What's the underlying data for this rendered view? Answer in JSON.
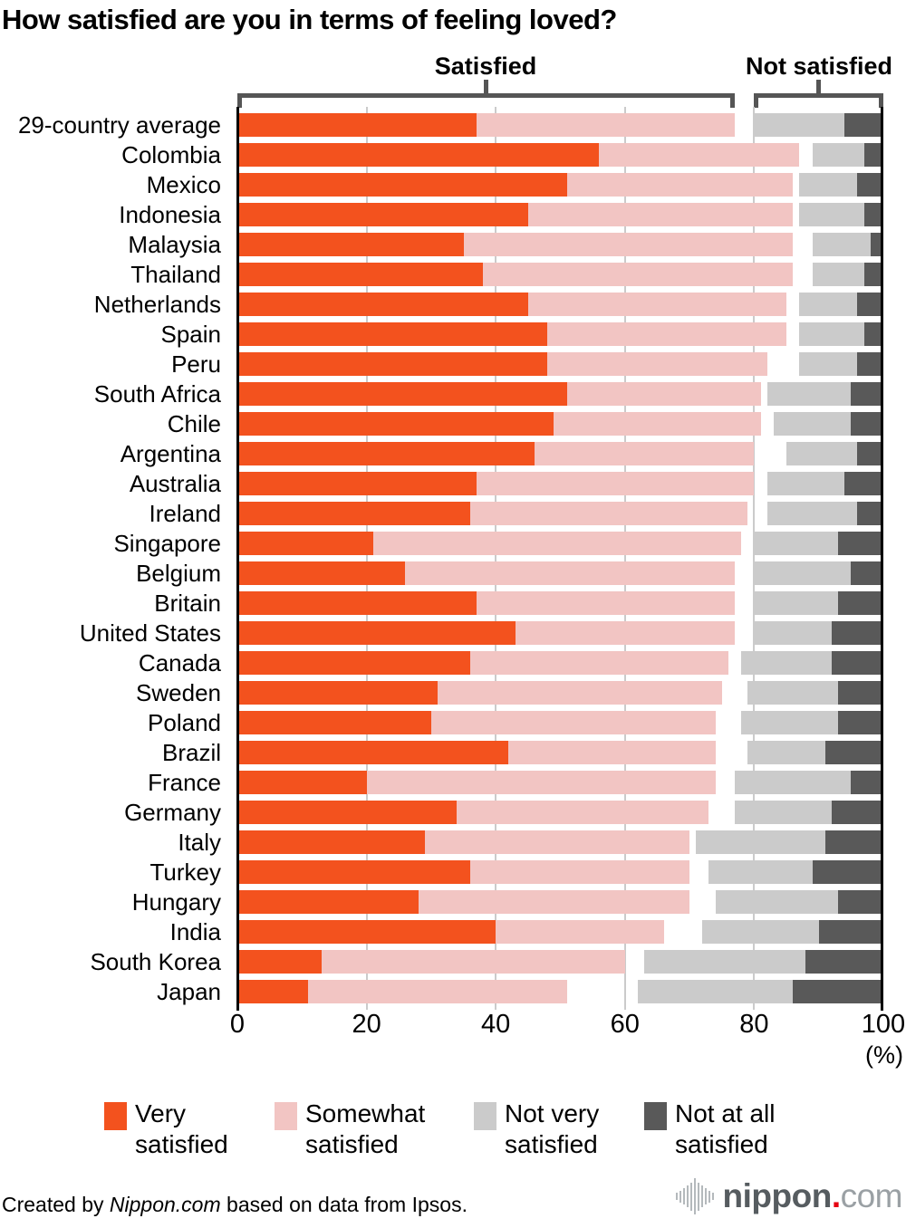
{
  "title": "How satisfied are you in terms of feeling loved?",
  "group_labels": {
    "satisfied": "Satisfied",
    "not_satisfied": "Not satisfied"
  },
  "axis": {
    "ticks": [
      0,
      20,
      40,
      60,
      80,
      100
    ],
    "unit": "(%)",
    "xlim": [
      0,
      100
    ]
  },
  "colors": {
    "very_satisfied": "#F3521E",
    "somewhat_satisfied": "#F2C5C3",
    "not_very_satisfied": "#CBCBCB",
    "not_at_all_satisfied": "#595959",
    "bracket": "#555555",
    "gridline": "#CBCBCB",
    "axis_line": "#000000",
    "logo_red": "#E60012"
  },
  "legend": [
    {
      "label": "Very\nsatisfied",
      "color": "#F3521E"
    },
    {
      "label": "Somewhat\nsatisfied",
      "color": "#F2C5C3"
    },
    {
      "label": "Not very\nsatisfied",
      "color": "#CBCBCB"
    },
    {
      "label": "Not at all\nsatisfied",
      "color": "#595959"
    }
  ],
  "footer": {
    "credit_prefix": "Created by ",
    "credit_source": "Nippon.com",
    "credit_suffix": " based on data from Ipsos.",
    "logo_name": "nippon",
    "logo_dot": ".",
    "logo_tld": "com"
  },
  "chart_data": {
    "type": "bar",
    "orientation": "horizontal",
    "stacked": true,
    "title": "How satisfied are you in terms of feeling loved?",
    "xlabel": "(%)",
    "xlim": [
      0,
      100
    ],
    "grid": true,
    "legend_position": "bottom",
    "layout_note": "Satisfied segments (very+somewhat) are left-aligned at 0; not-satisfied segments (not very+not at all) are right-aligned at 100, leaving a gap for don't-know responses.",
    "series_names": [
      "Very satisfied",
      "Somewhat satisfied",
      "Not very satisfied",
      "Not at all satisfied"
    ],
    "group_spans": {
      "satisfied": [
        0,
        77
      ],
      "not_satisfied": [
        80,
        100
      ]
    },
    "rows": [
      {
        "label": "29-country average",
        "very": 37,
        "somewhat": 40,
        "not_very": 14,
        "not_at_all": 6
      },
      {
        "label": "Colombia",
        "very": 56,
        "somewhat": 31,
        "not_very": 8,
        "not_at_all": 3
      },
      {
        "label": "Mexico",
        "very": 51,
        "somewhat": 35,
        "not_very": 9,
        "not_at_all": 4
      },
      {
        "label": "Indonesia",
        "very": 45,
        "somewhat": 41,
        "not_very": 10,
        "not_at_all": 3
      },
      {
        "label": "Malaysia",
        "very": 35,
        "somewhat": 51,
        "not_very": 9,
        "not_at_all": 2
      },
      {
        "label": "Thailand",
        "very": 38,
        "somewhat": 48,
        "not_very": 8,
        "not_at_all": 3
      },
      {
        "label": "Netherlands",
        "very": 45,
        "somewhat": 40,
        "not_very": 9,
        "not_at_all": 4
      },
      {
        "label": "Spain",
        "very": 48,
        "somewhat": 37,
        "not_very": 10,
        "not_at_all": 3
      },
      {
        "label": "Peru",
        "very": 48,
        "somewhat": 34,
        "not_very": 9,
        "not_at_all": 4
      },
      {
        "label": "South Africa",
        "very": 51,
        "somewhat": 30,
        "not_very": 13,
        "not_at_all": 5
      },
      {
        "label": "Chile",
        "very": 49,
        "somewhat": 32,
        "not_very": 12,
        "not_at_all": 5
      },
      {
        "label": "Argentina",
        "very": 46,
        "somewhat": 34,
        "not_very": 11,
        "not_at_all": 4
      },
      {
        "label": "Australia",
        "very": 37,
        "somewhat": 43,
        "not_very": 12,
        "not_at_all": 6
      },
      {
        "label": "Ireland",
        "very": 36,
        "somewhat": 43,
        "not_very": 14,
        "not_at_all": 4
      },
      {
        "label": "Singapore",
        "very": 21,
        "somewhat": 57,
        "not_very": 13,
        "not_at_all": 7
      },
      {
        "label": "Belgium",
        "very": 26,
        "somewhat": 51,
        "not_very": 15,
        "not_at_all": 5
      },
      {
        "label": "Britain",
        "very": 37,
        "somewhat": 40,
        "not_very": 13,
        "not_at_all": 7
      },
      {
        "label": "United States",
        "very": 43,
        "somewhat": 34,
        "not_very": 12,
        "not_at_all": 8
      },
      {
        "label": "Canada",
        "very": 36,
        "somewhat": 40,
        "not_very": 14,
        "not_at_all": 8
      },
      {
        "label": "Sweden",
        "very": 31,
        "somewhat": 44,
        "not_very": 14,
        "not_at_all": 7
      },
      {
        "label": "Poland",
        "very": 30,
        "somewhat": 44,
        "not_very": 15,
        "not_at_all": 7
      },
      {
        "label": "Brazil",
        "very": 42,
        "somewhat": 32,
        "not_very": 12,
        "not_at_all": 9
      },
      {
        "label": "France",
        "very": 20,
        "somewhat": 54,
        "not_very": 18,
        "not_at_all": 5
      },
      {
        "label": "Germany",
        "very": 34,
        "somewhat": 39,
        "not_very": 15,
        "not_at_all": 8
      },
      {
        "label": "Italy",
        "very": 29,
        "somewhat": 41,
        "not_very": 20,
        "not_at_all": 9
      },
      {
        "label": "Turkey",
        "very": 36,
        "somewhat": 34,
        "not_very": 16,
        "not_at_all": 11
      },
      {
        "label": "Hungary",
        "very": 28,
        "somewhat": 42,
        "not_very": 19,
        "not_at_all": 7
      },
      {
        "label": "India",
        "very": 40,
        "somewhat": 26,
        "not_very": 18,
        "not_at_all": 10
      },
      {
        "label": "South Korea",
        "very": 13,
        "somewhat": 47,
        "not_very": 25,
        "not_at_all": 12
      },
      {
        "label": "Japan",
        "very": 11,
        "somewhat": 40,
        "not_very": 24,
        "not_at_all": 14
      }
    ]
  }
}
